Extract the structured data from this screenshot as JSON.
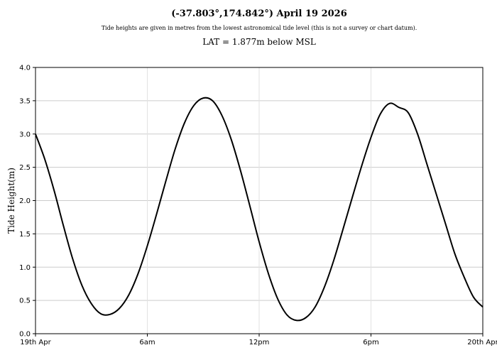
{
  "chart_data": {
    "type": "line",
    "title": "(-37.803°,174.842°) April 19 2026",
    "subtitle": "Tide heights are given in metres from the lowest astronomical tide level (this is not a survey or chart datum).",
    "lat_note": "LAT = 1.877m below MSL",
    "ylabel": "Tide Height(m)",
    "xlabel": "",
    "xlim": [
      0,
      24
    ],
    "ylim": [
      0,
      4
    ],
    "x_ticks": [
      {
        "x": 0,
        "label": "19th Apr"
      },
      {
        "x": 6,
        "label": "6am"
      },
      {
        "x": 12,
        "label": "12pm"
      },
      {
        "x": 18,
        "label": "6pm"
      },
      {
        "x": 24,
        "label": "20th Apr"
      }
    ],
    "y_ticks": [
      {
        "y": 0,
        "label": "0.0"
      },
      {
        "y": 0.5,
        "label": "0.5"
      },
      {
        "y": 1.0,
        "label": "1.0"
      },
      {
        "y": 1.5,
        "label": "1.5"
      },
      {
        "y": 2.0,
        "label": "2.0"
      },
      {
        "y": 2.5,
        "label": "2.5"
      },
      {
        "y": 3.0,
        "label": "3.0"
      },
      {
        "y": 3.5,
        "label": "3.5"
      },
      {
        "y": 4.0,
        "label": "4.0"
      }
    ],
    "grid": true,
    "series": [
      {
        "color": "#000000",
        "x": [
          0,
          0.5,
          1.0,
          1.5,
          2.0,
          2.5,
          3.0,
          3.5,
          4.0,
          4.5,
          5.0,
          5.5,
          6.0,
          6.5,
          7.0,
          7.5,
          8.0,
          8.5,
          9.0,
          9.5,
          10.0,
          10.5,
          11.0,
          11.5,
          12.0,
          12.5,
          13.0,
          13.5,
          14.0,
          14.5,
          15.0,
          15.5,
          16.0,
          16.5,
          17.0,
          17.5,
          18.0,
          18.5,
          19.0,
          19.5,
          20.0,
          20.5,
          21.0,
          21.5,
          22.0,
          22.5,
          23.0,
          23.5,
          24.0
        ],
        "values": [
          3.0,
          2.62,
          2.15,
          1.62,
          1.12,
          0.72,
          0.45,
          0.3,
          0.29,
          0.38,
          0.58,
          0.9,
          1.32,
          1.8,
          2.3,
          2.78,
          3.17,
          3.43,
          3.54,
          3.5,
          3.28,
          2.92,
          2.45,
          1.92,
          1.38,
          0.9,
          0.52,
          0.28,
          0.2,
          0.24,
          0.4,
          0.7,
          1.1,
          1.57,
          2.05,
          2.52,
          2.95,
          3.3,
          3.46,
          3.4,
          3.32,
          3.0,
          2.55,
          2.1,
          1.65,
          1.2,
          0.85,
          0.55,
          0.4
        ]
      }
    ]
  }
}
